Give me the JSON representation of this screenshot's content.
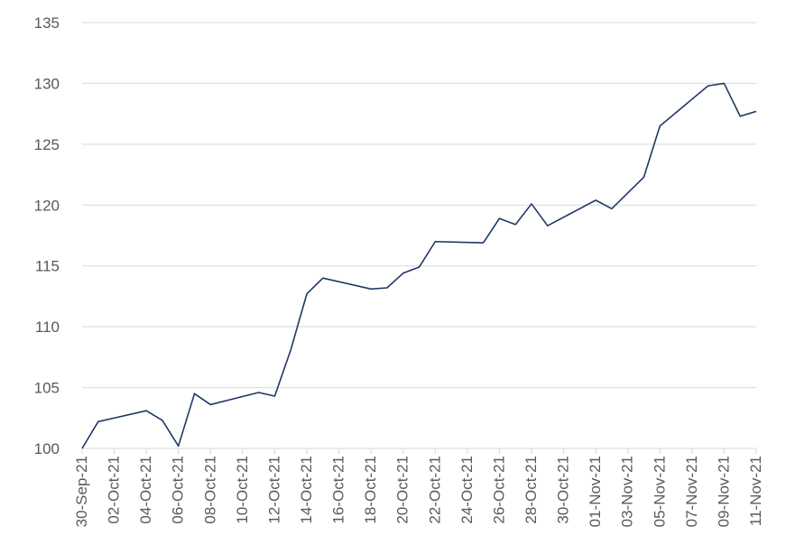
{
  "chart_data": {
    "type": "line",
    "title": "",
    "xlabel": "",
    "ylabel": "",
    "ylim": [
      100,
      135
    ],
    "yticks": [
      100,
      105,
      110,
      115,
      120,
      125,
      130,
      135
    ],
    "xlim": [
      "30-Sep-21",
      "11-Nov-21"
    ],
    "xticks": [
      "30-Sep-21",
      "02-Oct-21",
      "04-Oct-21",
      "06-Oct-21",
      "08-Oct-21",
      "10-Oct-21",
      "12-Oct-21",
      "14-Oct-21",
      "16-Oct-21",
      "18-Oct-21",
      "20-Oct-21",
      "22-Oct-21",
      "24-Oct-21",
      "26-Oct-21",
      "28-Oct-21",
      "30-Oct-21",
      "01-Nov-21",
      "03-Nov-21",
      "05-Nov-21",
      "07-Nov-21",
      "09-Nov-21",
      "11-Nov-21"
    ],
    "grid": true,
    "line_color": "#1f3864",
    "grid_color": "#d9d9d9",
    "series": [
      {
        "x": [
          "30-Sep-21",
          "01-Oct-21",
          "04-Oct-21",
          "05-Oct-21",
          "06-Oct-21",
          "07-Oct-21",
          "08-Oct-21",
          "11-Oct-21",
          "12-Oct-21",
          "13-Oct-21",
          "14-Oct-21",
          "15-Oct-21",
          "18-Oct-21",
          "19-Oct-21",
          "20-Oct-21",
          "21-Oct-21",
          "22-Oct-21",
          "25-Oct-21",
          "26-Oct-21",
          "27-Oct-21",
          "28-Oct-21",
          "29-Oct-21",
          "01-Nov-21",
          "02-Nov-21",
          "03-Nov-21",
          "04-Nov-21",
          "05-Nov-21",
          "08-Nov-21",
          "09-Nov-21",
          "10-Nov-21",
          "11-Nov-21"
        ],
        "y": [
          100.0,
          102.2,
          103.1,
          102.3,
          100.2,
          104.5,
          103.6,
          104.6,
          104.3,
          108.1,
          112.7,
          114.0,
          113.1,
          113.2,
          114.4,
          114.9,
          117.0,
          116.9,
          118.9,
          118.4,
          120.1,
          118.3,
          120.4,
          119.7,
          121.0,
          122.3,
          126.5,
          129.8,
          130.0,
          127.3,
          127.7
        ]
      }
    ]
  }
}
